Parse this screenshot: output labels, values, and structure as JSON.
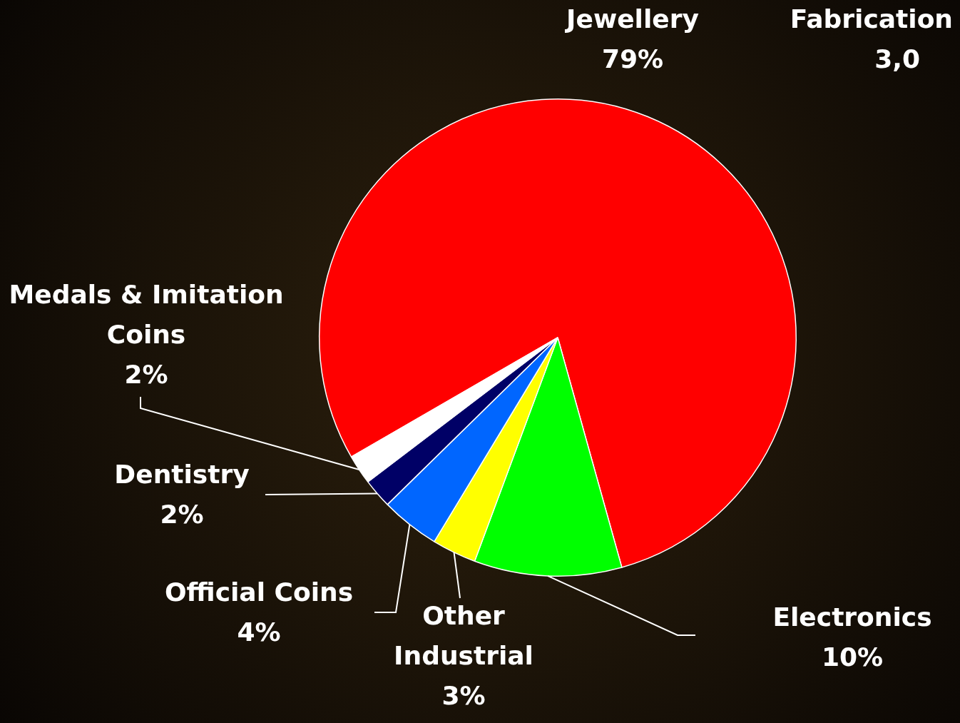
{
  "chart_data": {
    "type": "pie",
    "title": "Fabrication",
    "subtitle": "3,0",
    "categories": [
      "Jewellery",
      "Electronics",
      "Other Industrial",
      "Official Coins",
      "Dentistry",
      "Medals & Imitation Coins"
    ],
    "values": [
      79,
      10,
      3,
      4,
      2,
      2
    ],
    "value_labels": [
      "79%",
      "10%",
      "3%",
      "4%",
      "2%",
      "2%"
    ],
    "colors": [
      "#ff0000",
      "#00ff00",
      "#ffff00",
      "#0066ff",
      "#000066",
      "#ffffff"
    ],
    "data_labels": true
  }
}
